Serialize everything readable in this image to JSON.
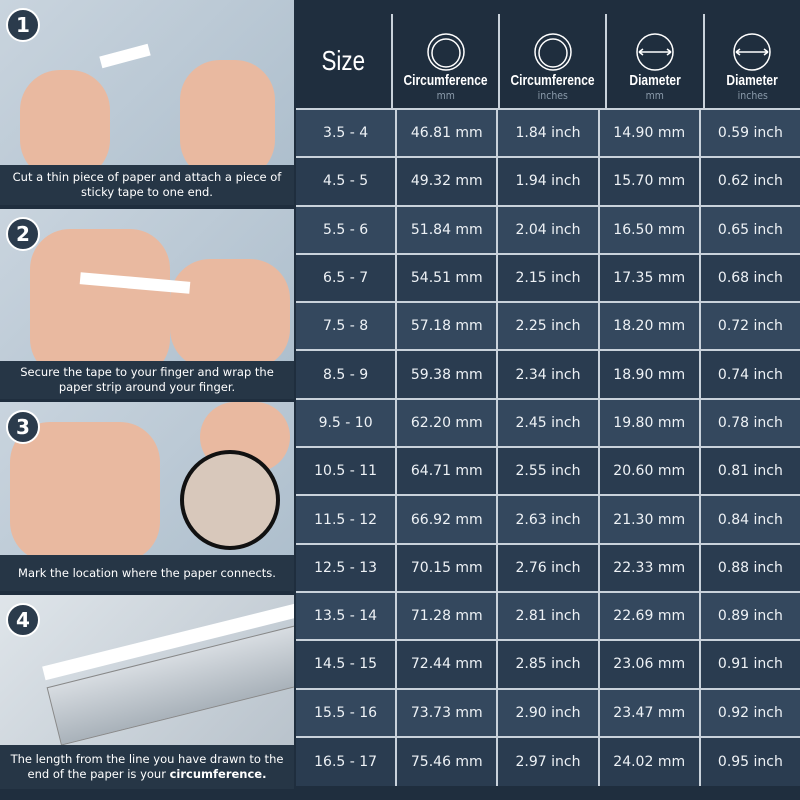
{
  "steps": [
    {
      "number": "1",
      "caption": "Cut a thin piece of paper and attach a piece of sticky tape to one end."
    },
    {
      "number": "2",
      "caption": "Secure the tape to your finger and wrap the paper strip around your finger."
    },
    {
      "number": "3",
      "caption": "Mark the location where the paper connects."
    },
    {
      "number": "4",
      "caption_prefix": "The length from the line you have drawn to the end of the paper is your ",
      "caption_bold": "circumference."
    }
  ],
  "table": {
    "headers": [
      {
        "label": "Size",
        "unit": "",
        "icon": ""
      },
      {
        "label": "Circumference",
        "unit": "mm",
        "icon": "ring-circumference-icon"
      },
      {
        "label": "Circumference",
        "unit": "inches",
        "icon": "ring-circumference-icon"
      },
      {
        "label": "Diameter",
        "unit": "mm",
        "icon": "circle-diameter-icon"
      },
      {
        "label": "Diameter",
        "unit": "inches",
        "icon": "circle-diameter-icon"
      }
    ],
    "rows": [
      [
        "3.5 - 4",
        "46.81 mm",
        "1.84 inch",
        "14.90 mm",
        "0.59 inch"
      ],
      [
        "4.5 - 5",
        "49.32 mm",
        "1.94 inch",
        "15.70 mm",
        "0.62 inch"
      ],
      [
        "5.5 - 6",
        "51.84 mm",
        "2.04 inch",
        "16.50 mm",
        "0.65 inch"
      ],
      [
        "6.5 - 7",
        "54.51 mm",
        "2.15 inch",
        "17.35 mm",
        "0.68 inch"
      ],
      [
        "7.5 - 8",
        "57.18 mm",
        "2.25 inch",
        "18.20 mm",
        "0.72 inch"
      ],
      [
        "8.5 - 9",
        "59.38 mm",
        "2.34 inch",
        "18.90 mm",
        "0.74 inch"
      ],
      [
        "9.5 - 10",
        "62.20 mm",
        "2.45 inch",
        "19.80 mm",
        "0.78 inch"
      ],
      [
        "10.5 - 11",
        "64.71 mm",
        "2.55 inch",
        "20.60 mm",
        "0.81 inch"
      ],
      [
        "11.5 - 12",
        "66.92 mm",
        "2.63 inch",
        "21.30 mm",
        "0.84 inch"
      ],
      [
        "12.5 - 13",
        "70.15 mm",
        "2.76 inch",
        "22.33 mm",
        "0.88 inch"
      ],
      [
        "13.5 - 14",
        "71.28 mm",
        "2.81 inch",
        "22.69 mm",
        "0.89 inch"
      ],
      [
        "14.5 - 15",
        "72.44 mm",
        "2.85 inch",
        "23.06 mm",
        "0.91 inch"
      ],
      [
        "15.5 - 16",
        "73.73 mm",
        "2.90 inch",
        "23.47 mm",
        "0.92 inch"
      ],
      [
        "16.5 - 17",
        "75.46 mm",
        "2.97 inch",
        "24.02 mm",
        "0.95 inch"
      ]
    ]
  }
}
